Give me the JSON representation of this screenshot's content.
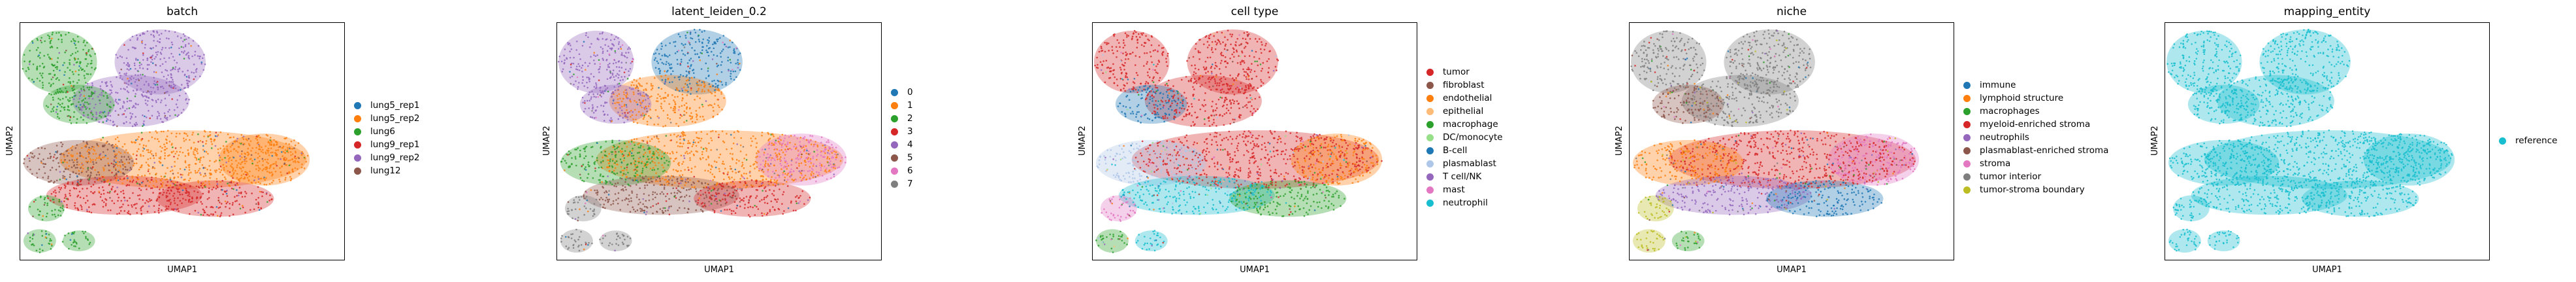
{
  "chart_data": [
    {
      "type": "scatter",
      "title": "batch",
      "xlabel": "UMAP1",
      "ylabel": "UMAP2",
      "legend_placement": "right",
      "grid": false,
      "categories": [
        "lung5_rep1",
        "lung5_rep2",
        "lung6",
        "lung9_rep1",
        "lung9_rep2",
        "lung12"
      ],
      "colors": [
        "#1f77b4",
        "#ff7f0e",
        "#2ca02c",
        "#d62728",
        "#9467bd",
        "#8c564b"
      ]
    },
    {
      "type": "scatter",
      "title": "latent_leiden_0.2",
      "xlabel": "UMAP1",
      "ylabel": "UMAP2",
      "legend_placement": "right",
      "grid": false,
      "categories": [
        "0",
        "1",
        "2",
        "3",
        "4",
        "5",
        "6",
        "7"
      ],
      "colors": [
        "#1f77b4",
        "#ff7f0e",
        "#2ca02c",
        "#d62728",
        "#9467bd",
        "#8c564b",
        "#e377c2",
        "#7f7f7f"
      ]
    },
    {
      "type": "scatter",
      "title": "cell type",
      "xlabel": "UMAP1",
      "ylabel": "UMAP2",
      "legend_placement": "right",
      "grid": false,
      "categories": [
        "tumor",
        "fibroblast",
        "endothelial",
        "epithelial",
        "macrophage",
        "DC/monocyte",
        "B-cell",
        "plasmablast",
        "T cell/NK",
        "mast",
        "neutrophil"
      ],
      "colors": [
        "#d62728",
        "#8c564b",
        "#ff7f0e",
        "#ffbb78",
        "#2ca02c",
        "#98df8a",
        "#1f77b4",
        "#aec7e8",
        "#9467bd",
        "#e377c2",
        "#17becf"
      ]
    },
    {
      "type": "scatter",
      "title": "niche",
      "xlabel": "UMAP1",
      "ylabel": "UMAP2",
      "legend_placement": "right",
      "grid": false,
      "categories": [
        "immune",
        "lymphoid structure",
        "macrophages",
        "myeloid-enriched stroma",
        "neutrophils",
        "plasmablast-enriched stroma",
        "stroma",
        "tumor interior",
        "tumor-stroma boundary"
      ],
      "colors": [
        "#1f77b4",
        "#ff7f0e",
        "#2ca02c",
        "#d62728",
        "#9467bd",
        "#8c564b",
        "#e377c2",
        "#7f7f7f",
        "#bcbd22"
      ]
    },
    {
      "type": "scatter",
      "title": "mapping_entity",
      "xlabel": "UMAP1",
      "ylabel": "UMAP2",
      "legend_placement": "right",
      "grid": false,
      "categories": [
        "reference"
      ],
      "colors": [
        "#17becf"
      ]
    }
  ]
}
